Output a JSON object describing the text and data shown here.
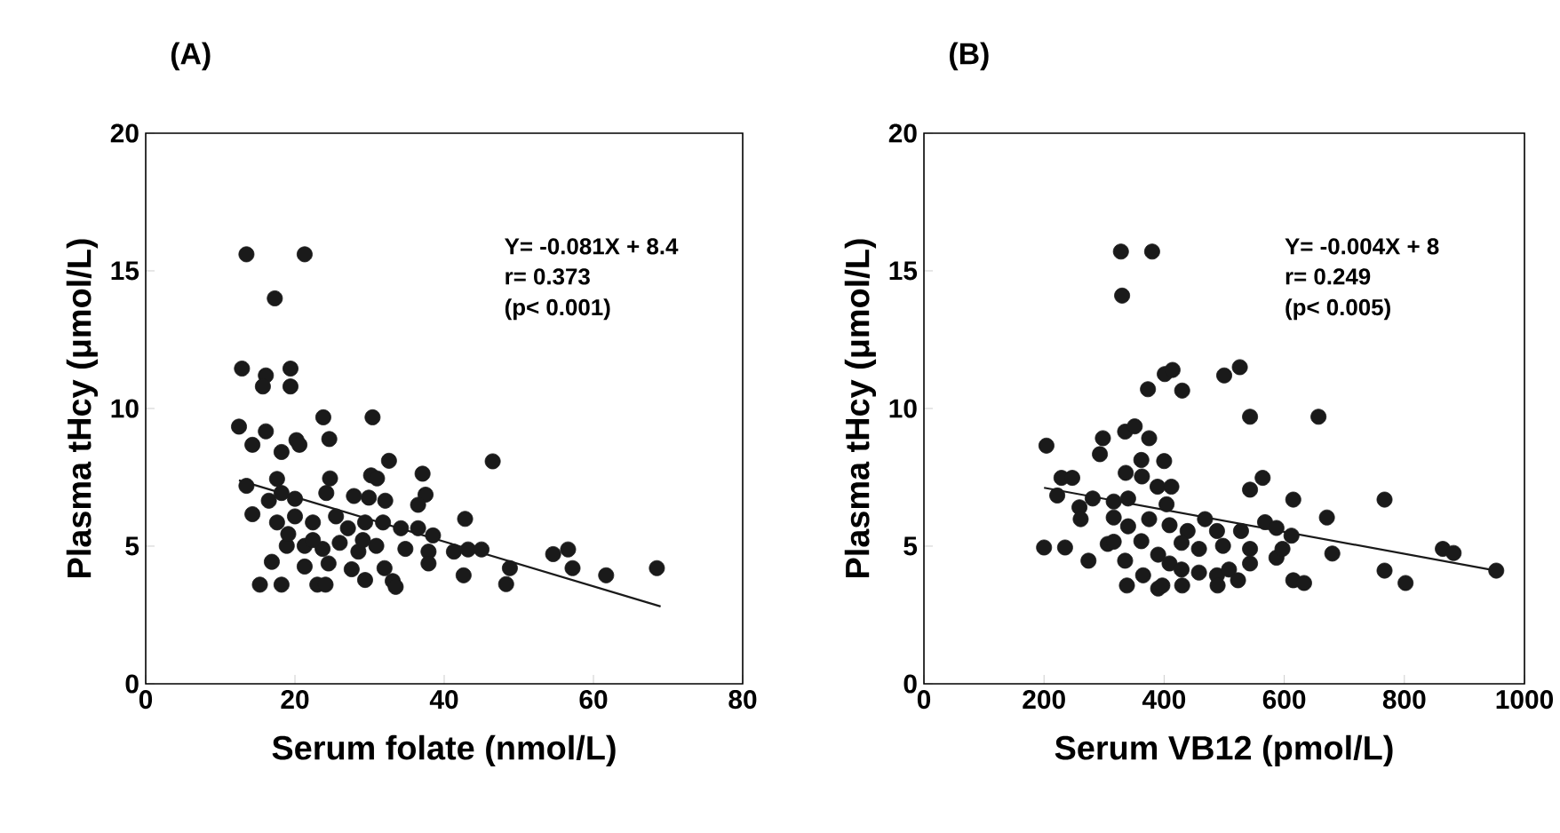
{
  "chart_data": [
    {
      "type": "scatter",
      "title": "(A)",
      "xlabel": "Serum folate (nmol/L)",
      "ylabel": "Plasma tHcy (μmol/L)",
      "xlim": [
        0,
        80
      ],
      "ylim": [
        0,
        20
      ],
      "xticks": [
        0,
        20,
        40,
        60,
        80
      ],
      "yticks": [
        0,
        5,
        10,
        15,
        20
      ],
      "grid": false,
      "series": [
        {
          "color": "#1a1a1a",
          "marker": "circle",
          "x": [
            13.5,
            21.3,
            17.3,
            12.9,
            16.1,
            15.7,
            19.4,
            19.4,
            12.5,
            16.1,
            14.3,
            18.2,
            20.2,
            20.6,
            23.8,
            24.6,
            30.4,
            32.6,
            46.5,
            13.5,
            17.6,
            14.3,
            16.5,
            18.2,
            20.0,
            24.7,
            24.2,
            30.2,
            31.0,
            27.9,
            29.9,
            32.1,
            37.1,
            37.5,
            36.5,
            17.6,
            20.0,
            22.4,
            25.5,
            27.1,
            29.4,
            31.8,
            34.2,
            36.5,
            38.5,
            42.8,
            18.9,
            21.3,
            23.7,
            26.0,
            28.5,
            30.9,
            34.8,
            37.9,
            41.3,
            43.2,
            45.0,
            16.9,
            21.3,
            24.5,
            27.6,
            32.0,
            37.9,
            42.6,
            48.8,
            48.3,
            54.6,
            56.6,
            57.2,
            61.7,
            68.5,
            15.3,
            18.2,
            23.0,
            24.1,
            29.4,
            33.1,
            33.5,
            22.4,
            19.1,
            29.1
          ],
          "values": [
            15.6,
            15.6,
            14.0,
            11.45,
            11.2,
            10.8,
            11.45,
            10.8,
            9.34,
            9.17,
            8.68,
            8.42,
            8.85,
            8.68,
            9.68,
            8.89,
            9.68,
            8.1,
            8.08,
            7.19,
            7.44,
            6.16,
            6.65,
            6.93,
            6.72,
            7.46,
            6.93,
            7.57,
            7.46,
            6.82,
            6.76,
            6.65,
            7.63,
            6.87,
            6.5,
            5.86,
            6.08,
            5.86,
            6.08,
            5.65,
            5.86,
            5.86,
            5.65,
            5.65,
            5.39,
            5.99,
            5.01,
            5.01,
            4.9,
            5.12,
            4.8,
            5.01,
            4.9,
            4.8,
            4.8,
            4.88,
            4.88,
            4.43,
            4.26,
            4.37,
            4.16,
            4.2,
            4.37,
            3.94,
            4.2,
            3.62,
            4.71,
            4.88,
            4.2,
            3.94,
            4.2,
            3.6,
            3.6,
            3.6,
            3.6,
            3.77,
            3.73,
            3.52,
            5.22,
            5.44,
            5.22
          ]
        },
        {
          "type": "line",
          "color": "#1a1a1a",
          "marker": "none",
          "x": [
            12.5,
            69
          ],
          "values": [
            7.39,
            2.81
          ]
        }
      ],
      "annotations": [
        "Y= -0.081X + 8.4",
        "r= 0.373",
        "(p< 0.001)"
      ]
    },
    {
      "type": "scatter",
      "title": "(B)",
      "xlabel": "Serum VB12 (pmol/L)",
      "ylabel": "Plasma tHcy (μmol/L)",
      "xlim": [
        0,
        1000
      ],
      "ylim": [
        0,
        20
      ],
      "xticks": [
        0,
        200,
        400,
        600,
        800,
        1000
      ],
      "yticks": [
        0,
        5,
        10,
        15,
        20
      ],
      "grid": false,
      "series": [
        {
          "color": "#1a1a1a",
          "marker": "circle",
          "x": [
            328,
            380,
            330,
            401,
            414,
            373,
            430,
            500,
            526,
            543,
            657,
            204,
            298,
            293,
            335,
            351,
            375,
            362,
            400,
            336,
            363,
            389,
            412,
            229,
            247,
            222,
            543,
            564,
            615,
            767,
            671,
            259,
            261,
            281,
            316,
            340,
            316,
            340,
            375,
            404,
            409,
            439,
            468,
            488,
            528,
            568,
            587,
            612,
            200,
            235,
            274,
            306,
            316,
            362,
            390,
            429,
            458,
            498,
            543,
            587,
            597,
            680,
            864,
            882,
            335,
            365,
            409,
            429,
            458,
            488,
            508,
            523,
            543,
            338,
            390,
            397,
            430,
            489,
            615,
            633,
            767,
            802,
            953
          ],
          "values": [
            15.7,
            15.7,
            14.1,
            11.25,
            11.4,
            10.7,
            10.65,
            11.2,
            11.5,
            9.7,
            9.7,
            8.65,
            8.92,
            8.34,
            9.16,
            9.35,
            8.92,
            8.13,
            8.09,
            7.66,
            7.53,
            7.16,
            7.16,
            7.48,
            7.48,
            6.84,
            7.05,
            7.48,
            6.69,
            6.69,
            6.04,
            6.41,
            5.98,
            6.73,
            6.62,
            6.73,
            6.04,
            5.72,
            5.98,
            6.52,
            5.76,
            5.55,
            5.98,
            5.55,
            5.55,
            5.87,
            5.66,
            5.38,
            4.95,
            4.95,
            4.47,
            5.08,
            5.16,
            5.18,
            4.69,
            5.12,
            4.9,
            5.01,
            4.9,
            4.58,
            4.9,
            4.73,
            4.9,
            4.75,
            4.47,
            3.94,
            4.37,
            4.15,
            4.04,
            3.94,
            4.15,
            3.76,
            4.37,
            3.57,
            3.46,
            3.57,
            3.57,
            3.57,
            3.76,
            3.66,
            4.11,
            3.66,
            4.11
          ]
        },
        {
          "type": "line",
          "color": "#1a1a1a",
          "marker": "none",
          "x": [
            200,
            953
          ],
          "values": [
            7.12,
            4.11
          ]
        }
      ],
      "annotations": [
        "Y= -0.004X + 8",
        "r= 0.249",
        "(p< 0.005)"
      ]
    }
  ]
}
